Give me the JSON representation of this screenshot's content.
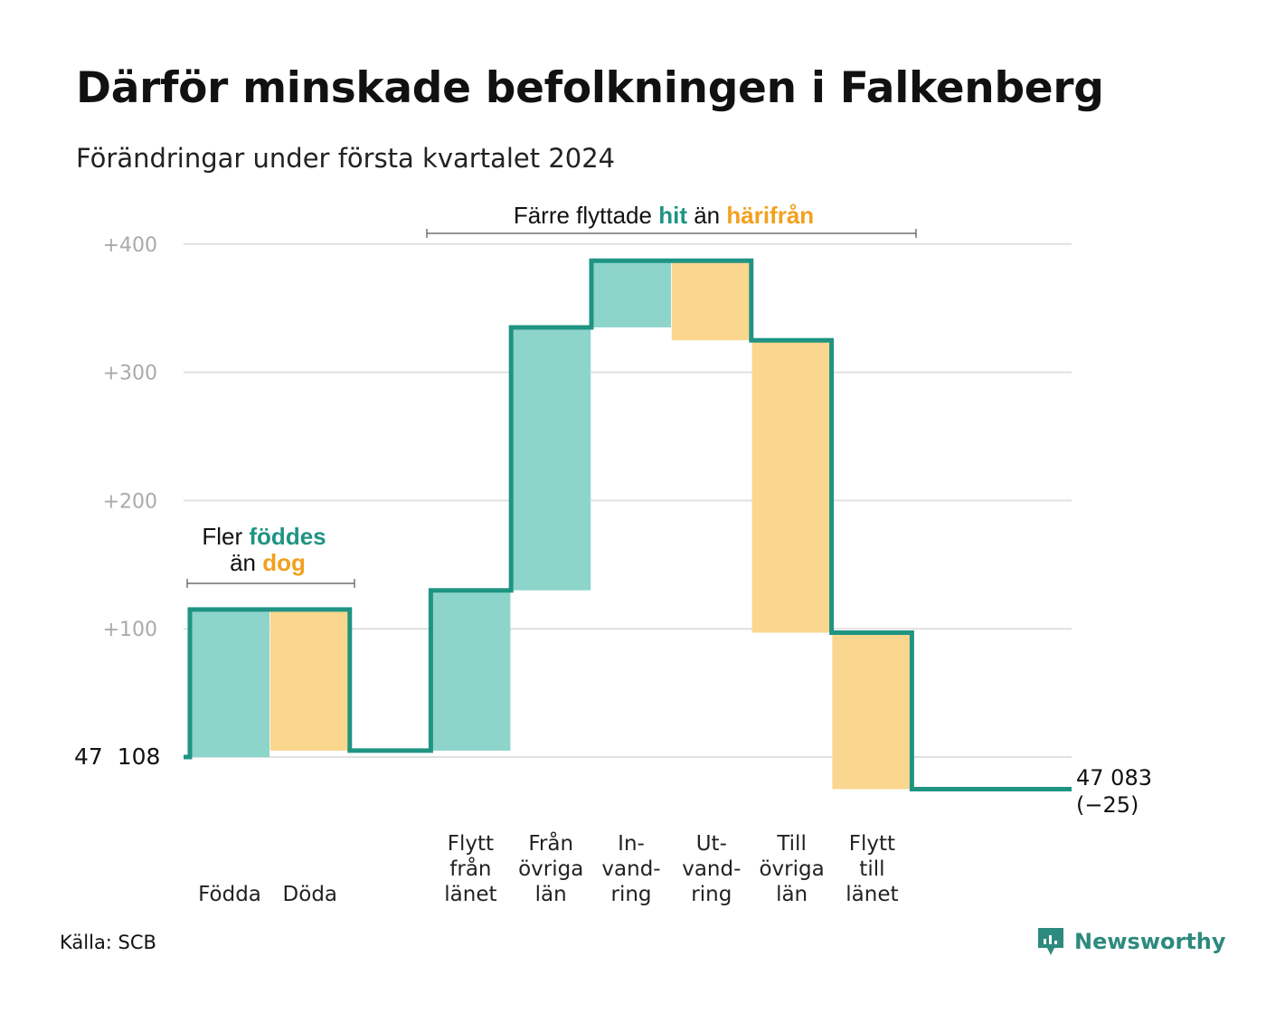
{
  "title": "Därför minskade befolkningen i Falkenberg",
  "subtitle": "Förändringar under första kvartalet 2024",
  "source": "Källa: SCB",
  "logo_text": "Newsworthy",
  "colors": {
    "teal_line": "#1f9483",
    "teal_fill": "#8dd4cb",
    "orange_fill": "#fad68e",
    "teal_text": "#1f9483",
    "orange_text": "#f2a01e",
    "grid": "#e0e0e0"
  },
  "annotations": {
    "births": {
      "pre": "Fler",
      "hi": "föddes",
      "line2_pre": "än",
      "line2_hi": "dog"
    },
    "moves": {
      "pre": "Färre flyttade",
      "hi1": "hit",
      "mid": "än",
      "hi2": "härifrån"
    }
  },
  "start_label": "47  108",
  "end_label": "47 083",
  "end_change": "(−25)",
  "chart_data": {
    "type": "waterfall",
    "title": "Därför minskade befolkningen i Falkenberg",
    "subtitle": "Förändringar under första kvartalet 2024",
    "start_value": 47108,
    "end_value": 47083,
    "y_ticks": [
      "+100",
      "+200",
      "+300",
      "+400"
    ],
    "y_tick_values": [
      100,
      200,
      300,
      400
    ],
    "ylim": [
      -35,
      415
    ],
    "grid": true,
    "categories": [
      {
        "label": [
          "Födda"
        ],
        "delta": 115,
        "sign": "positive"
      },
      {
        "label": [
          "Döda"
        ],
        "delta": -110,
        "sign": "negative"
      },
      {
        "label": [],
        "delta": 0,
        "sign": "gap"
      },
      {
        "label": [
          "Flytt",
          "från",
          "länet"
        ],
        "delta": 125,
        "sign": "positive"
      },
      {
        "label": [
          "Från",
          "övriga",
          "län"
        ],
        "delta": 205,
        "sign": "positive"
      },
      {
        "label": [
          "In-",
          "vand-",
          "ring"
        ],
        "delta": 52,
        "sign": "positive"
      },
      {
        "label": [
          "Ut-",
          "vand-",
          "ring"
        ],
        "delta": -62,
        "sign": "negative"
      },
      {
        "label": [
          "Till",
          "övriga",
          "län"
        ],
        "delta": -228,
        "sign": "negative"
      },
      {
        "label": [
          "Flytt",
          "till",
          "länet"
        ],
        "delta": -122,
        "sign": "negative"
      }
    ]
  }
}
